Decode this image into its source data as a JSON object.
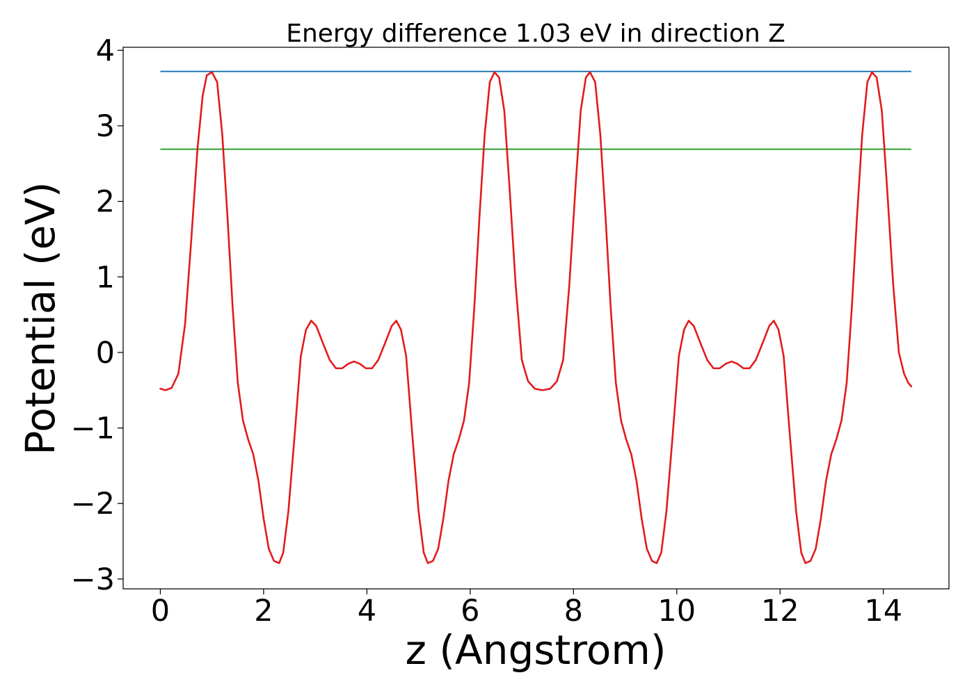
{
  "chart_data": {
    "type": "line",
    "title": "Energy difference 1.03 eV in direction Z",
    "xlabel": "z (Angstrom)",
    "ylabel": "Potential (eV)",
    "xlim": [
      -0.72,
      15.27
    ],
    "ylim": [
      -3.13,
      4.04
    ],
    "xticks": [
      0,
      2,
      4,
      6,
      8,
      10,
      12,
      14
    ],
    "xtick_labels": [
      "0",
      "2",
      "4",
      "6",
      "8",
      "10",
      "12",
      "14"
    ],
    "yticks": [
      4,
      3,
      2,
      1,
      0,
      -1,
      -2,
      -3
    ],
    "ytick_labels": [
      "4",
      "3",
      "2",
      "1",
      "0",
      "−1",
      "−2",
      "−3"
    ],
    "grid": false,
    "legend": "none",
    "series": [
      {
        "kind": "hline",
        "color": "#1f77b4",
        "y": 3.72,
        "x_range": [
          0,
          14.54
        ]
      },
      {
        "kind": "hline",
        "color": "#2ca02c",
        "y": 2.69,
        "x_range": [
          0,
          14.54
        ]
      },
      {
        "kind": "curve",
        "color": "#e31a1c",
        "points": [
          [
            0.0,
            -0.48
          ],
          [
            0.1,
            -0.5
          ],
          [
            0.22,
            -0.47
          ],
          [
            0.35,
            -0.28
          ],
          [
            0.48,
            0.38
          ],
          [
            0.6,
            1.5
          ],
          [
            0.72,
            2.7
          ],
          [
            0.82,
            3.4
          ],
          [
            0.9,
            3.67
          ],
          [
            1.0,
            3.71
          ],
          [
            1.1,
            3.58
          ],
          [
            1.2,
            2.88
          ],
          [
            1.3,
            1.8
          ],
          [
            1.4,
            0.6
          ],
          [
            1.5,
            -0.4
          ],
          [
            1.6,
            -0.9
          ],
          [
            1.7,
            -1.15
          ],
          [
            1.8,
            -1.35
          ],
          [
            1.9,
            -1.7
          ],
          [
            2.0,
            -2.2
          ],
          [
            2.1,
            -2.6
          ],
          [
            2.2,
            -2.76
          ],
          [
            2.3,
            -2.79
          ],
          [
            2.38,
            -2.65
          ],
          [
            2.48,
            -2.1
          ],
          [
            2.6,
            -1.1
          ],
          [
            2.72,
            -0.05
          ],
          [
            2.82,
            0.3
          ],
          [
            2.92,
            0.42
          ],
          [
            3.02,
            0.35
          ],
          [
            3.15,
            0.12
          ],
          [
            3.28,
            -0.1
          ],
          [
            3.4,
            -0.21
          ],
          [
            3.52,
            -0.21
          ],
          [
            3.64,
            -0.15
          ],
          [
            3.75,
            -0.12
          ],
          [
            3.86,
            -0.15
          ],
          [
            3.98,
            -0.21
          ],
          [
            4.1,
            -0.21
          ],
          [
            4.22,
            -0.1
          ],
          [
            4.35,
            0.12
          ],
          [
            4.48,
            0.35
          ],
          [
            4.57,
            0.42
          ],
          [
            4.66,
            0.3
          ],
          [
            4.76,
            -0.05
          ],
          [
            4.88,
            -1.1
          ],
          [
            5.0,
            -2.1
          ],
          [
            5.1,
            -2.65
          ],
          [
            5.18,
            -2.79
          ],
          [
            5.28,
            -2.76
          ],
          [
            5.38,
            -2.6
          ],
          [
            5.48,
            -2.2
          ],
          [
            5.58,
            -1.7
          ],
          [
            5.68,
            -1.35
          ],
          [
            5.78,
            -1.15
          ],
          [
            5.88,
            -0.9
          ],
          [
            5.98,
            -0.4
          ],
          [
            6.08,
            0.6
          ],
          [
            6.18,
            1.8
          ],
          [
            6.28,
            2.88
          ],
          [
            6.38,
            3.58
          ],
          [
            6.47,
            3.71
          ],
          [
            6.56,
            3.64
          ],
          [
            6.66,
            3.2
          ],
          [
            6.76,
            2.2
          ],
          [
            6.88,
            0.9
          ],
          [
            7.0,
            -0.1
          ],
          [
            7.12,
            -0.38
          ],
          [
            7.25,
            -0.48
          ],
          [
            7.4,
            -0.5
          ],
          [
            7.55,
            -0.48
          ],
          [
            7.68,
            -0.38
          ],
          [
            7.8,
            -0.1
          ],
          [
            7.92,
            0.9
          ],
          [
            8.04,
            2.2
          ],
          [
            8.14,
            3.2
          ],
          [
            8.24,
            3.64
          ],
          [
            8.32,
            3.71
          ],
          [
            8.42,
            3.58
          ],
          [
            8.52,
            2.88
          ],
          [
            8.62,
            1.8
          ],
          [
            8.72,
            0.6
          ],
          [
            8.82,
            -0.4
          ],
          [
            8.92,
            -0.9
          ],
          [
            9.02,
            -1.15
          ],
          [
            9.12,
            -1.35
          ],
          [
            9.22,
            -1.7
          ],
          [
            9.32,
            -2.2
          ],
          [
            9.42,
            -2.6
          ],
          [
            9.52,
            -2.76
          ],
          [
            9.61,
            -2.79
          ],
          [
            9.7,
            -2.65
          ],
          [
            9.8,
            -2.1
          ],
          [
            9.92,
            -1.1
          ],
          [
            10.04,
            -0.05
          ],
          [
            10.14,
            0.3
          ],
          [
            10.23,
            0.42
          ],
          [
            10.33,
            0.35
          ],
          [
            10.46,
            0.12
          ],
          [
            10.59,
            -0.1
          ],
          [
            10.71,
            -0.21
          ],
          [
            10.83,
            -0.21
          ],
          [
            10.95,
            -0.15
          ],
          [
            11.06,
            -0.12
          ],
          [
            11.17,
            -0.15
          ],
          [
            11.29,
            -0.21
          ],
          [
            11.41,
            -0.21
          ],
          [
            11.53,
            -0.1
          ],
          [
            11.66,
            0.12
          ],
          [
            11.79,
            0.35
          ],
          [
            11.88,
            0.42
          ],
          [
            11.97,
            0.3
          ],
          [
            12.07,
            -0.05
          ],
          [
            12.19,
            -1.1
          ],
          [
            12.31,
            -2.1
          ],
          [
            12.41,
            -2.65
          ],
          [
            12.49,
            -2.79
          ],
          [
            12.59,
            -2.76
          ],
          [
            12.69,
            -2.6
          ],
          [
            12.79,
            -2.2
          ],
          [
            12.89,
            -1.7
          ],
          [
            12.99,
            -1.35
          ],
          [
            13.09,
            -1.15
          ],
          [
            13.19,
            -0.9
          ],
          [
            13.29,
            -0.4
          ],
          [
            13.39,
            0.6
          ],
          [
            13.49,
            1.8
          ],
          [
            13.59,
            2.88
          ],
          [
            13.69,
            3.58
          ],
          [
            13.78,
            3.71
          ],
          [
            13.87,
            3.64
          ],
          [
            13.97,
            3.2
          ],
          [
            14.07,
            2.2
          ],
          [
            14.19,
            0.9
          ],
          [
            14.3,
            0.0
          ],
          [
            14.4,
            -0.28
          ],
          [
            14.48,
            -0.4
          ],
          [
            14.54,
            -0.45
          ]
        ]
      }
    ]
  }
}
